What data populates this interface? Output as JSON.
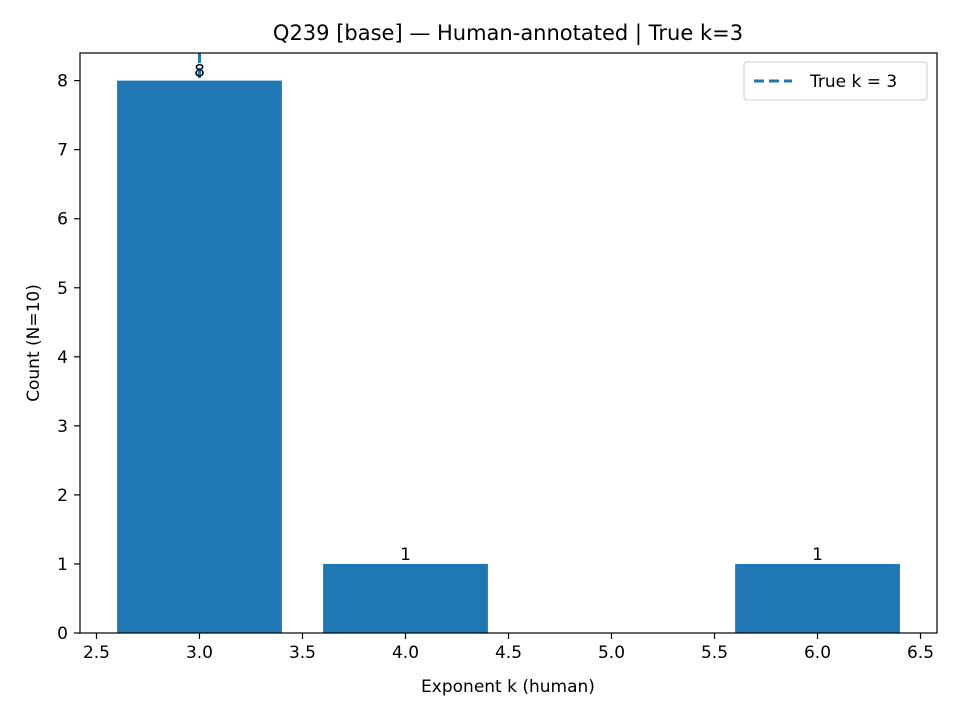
{
  "chart_data": {
    "type": "bar",
    "title": "Q239 [base] — Human-annotated | True k=3",
    "xlabel": "Exponent k (human)",
    "ylabel": "Count (N=10)",
    "x": [
      3,
      4,
      6
    ],
    "values": [
      8,
      1,
      1
    ],
    "data_labels": [
      "8",
      "1",
      "1"
    ],
    "bar_width": 0.8,
    "xlim": [
      2.42,
      6.58
    ],
    "ylim": [
      0,
      8.4
    ],
    "x_ticks": [
      2.5,
      3.0,
      3.5,
      4.0,
      4.5,
      5.0,
      5.5,
      6.0,
      6.5
    ],
    "x_tick_labels": [
      "2.5",
      "3.0",
      "3.5",
      "4.0",
      "4.5",
      "5.0",
      "5.5",
      "6.0",
      "6.5"
    ],
    "y_ticks": [
      0,
      1,
      2,
      3,
      4,
      5,
      6,
      7,
      8
    ],
    "y_tick_labels": [
      "0",
      "1",
      "2",
      "3",
      "4",
      "5",
      "6",
      "7",
      "8"
    ],
    "reference_line": {
      "x": 3,
      "style": "dashed",
      "label": "True k = 3"
    },
    "legend": {
      "position": "top-right",
      "entries": [
        "True k = 3"
      ]
    },
    "grid": false,
    "colors": {
      "bar": "#1f77b4",
      "reference_line": "#1f77b4"
    }
  }
}
